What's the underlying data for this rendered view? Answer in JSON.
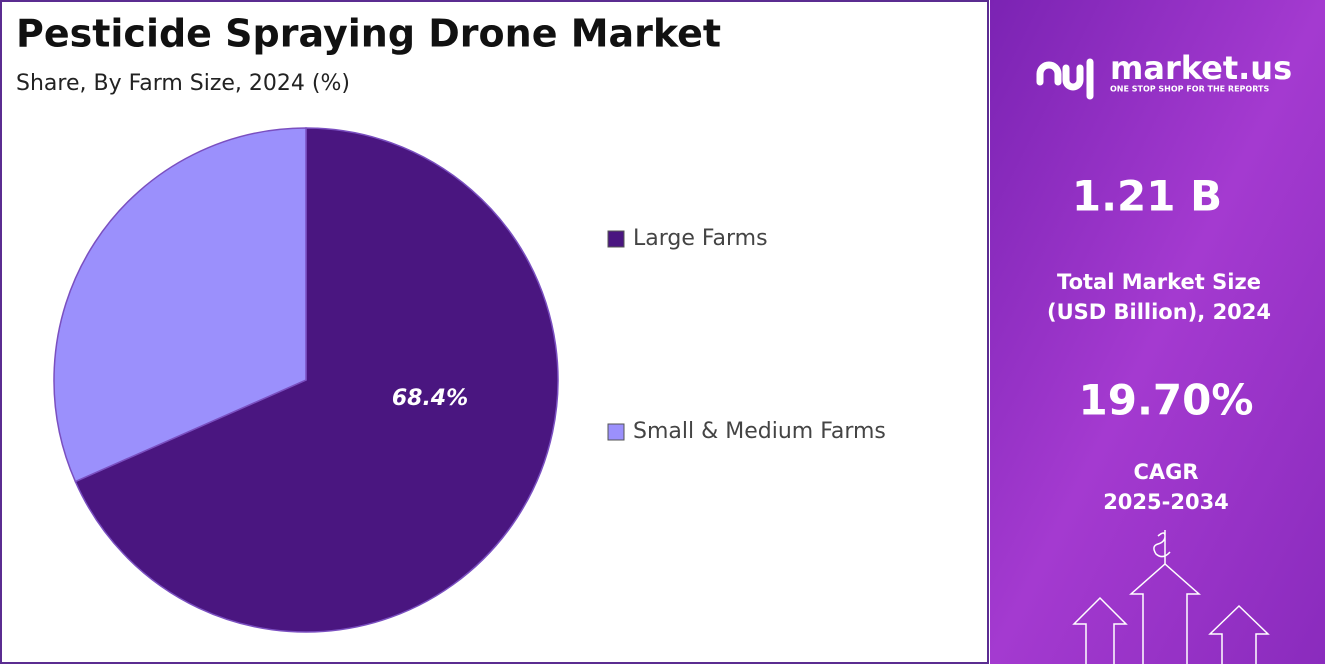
{
  "chart_data": {
    "type": "pie",
    "title": "Pesticide Spraying Drone Market",
    "subtitle": "Share, By Farm Size, 2024 (%)",
    "categories": [
      "Large Farms",
      "Small & Medium Farms"
    ],
    "values": [
      68.4,
      31.6
    ],
    "value_labels": [
      "68.4%",
      null
    ],
    "colors": [
      "#4a1680",
      "#9b90fc"
    ],
    "legend": "right"
  },
  "panel": {
    "brand": "market.us",
    "tagline": "ONE STOP SHOP FOR THE REPORTS",
    "market_size": "1.21 B",
    "market_size_label": [
      "Total Market Size",
      "(USD Billion), 2024"
    ],
    "cagr": "19.70%",
    "cagr_label": [
      "CAGR",
      "2025-2034"
    ]
  }
}
